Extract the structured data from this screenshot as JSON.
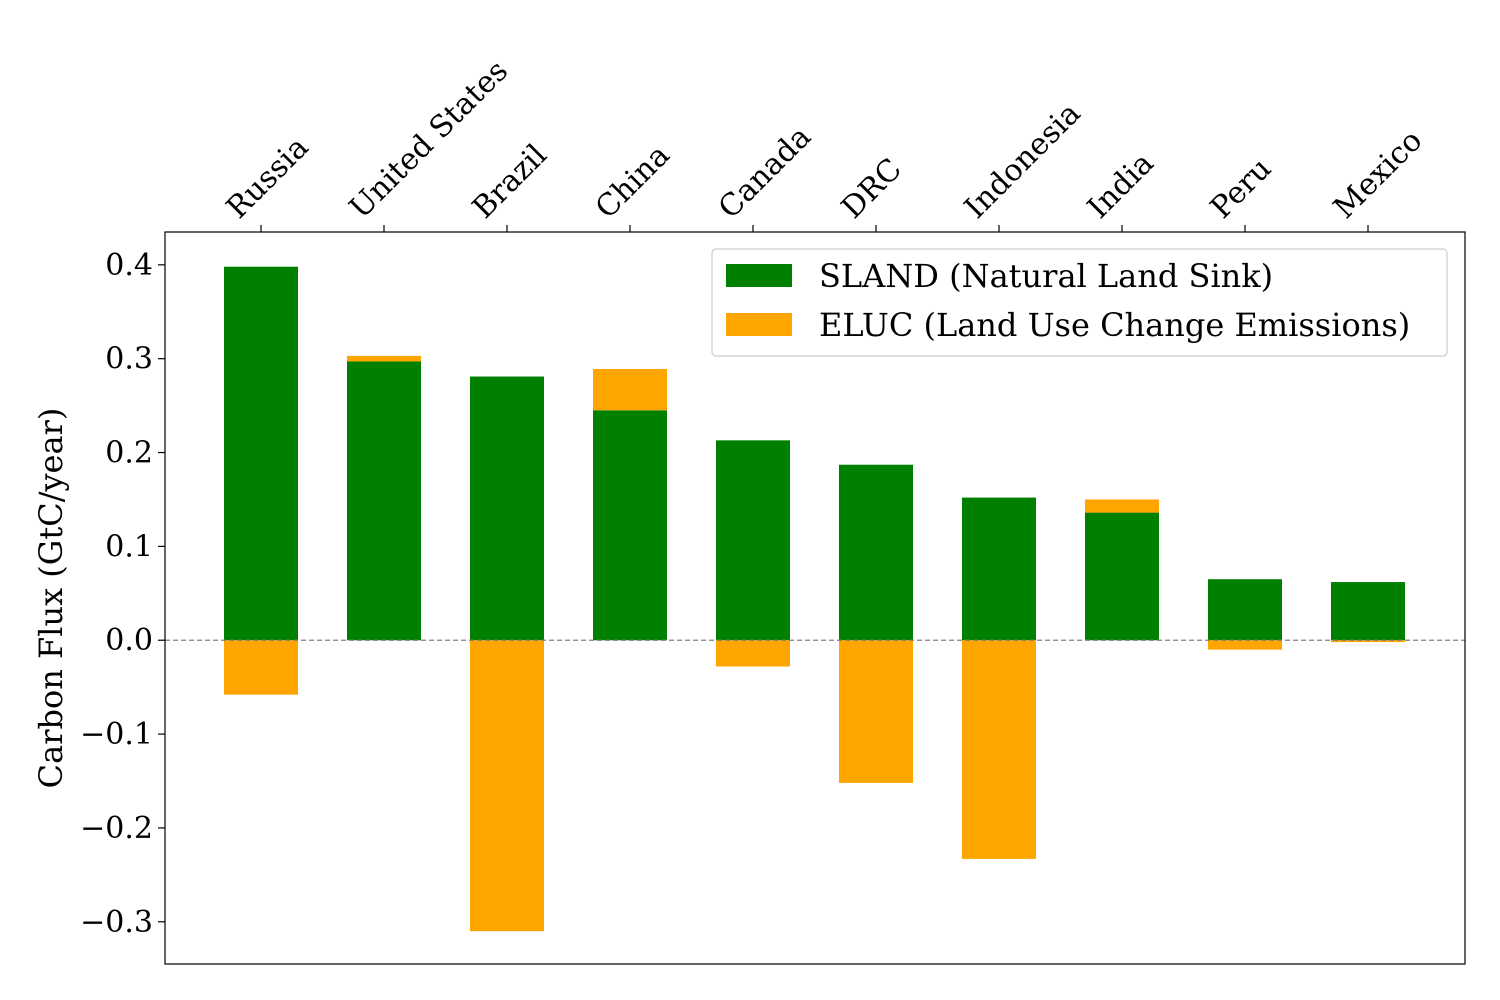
{
  "chart_data": {
    "type": "bar",
    "stacking": "diverging",
    "categories": [
      "Russia",
      "United States",
      "Brazil",
      "China",
      "Canada",
      "DRC",
      "Indonesia",
      "India",
      "Peru",
      "Mexico"
    ],
    "series": [
      {
        "name": "SLAND (Natural Land Sink)",
        "color": "#008000",
        "values": [
          0.398,
          0.297,
          0.281,
          0.245,
          0.213,
          0.187,
          0.152,
          0.136,
          0.065,
          0.062
        ]
      },
      {
        "name": "ELUC (Land Use Change Emissions)",
        "color": "#ffa500",
        "values": [
          -0.058,
          0.006,
          -0.31,
          0.044,
          -0.028,
          -0.152,
          -0.233,
          0.014,
          -0.01,
          -0.002
        ]
      }
    ],
    "title": "",
    "xlabel": "",
    "ylabel": "Carbon Flux (GtC/year)",
    "ylim": [
      -0.345,
      0.435
    ],
    "yticks": [
      0.4,
      0.3,
      0.2,
      0.1,
      0.0,
      -0.1,
      -0.2,
      -0.3
    ],
    "ytick_labels": [
      "0.4",
      "0.3",
      "0.2",
      "0.1",
      "0.0",
      "−0.1",
      "−0.2",
      "−0.3"
    ],
    "x_tick_position": "top",
    "x_tick_rotation": 45,
    "zero_line": true,
    "grid": false,
    "legend_position": "upper-right"
  }
}
